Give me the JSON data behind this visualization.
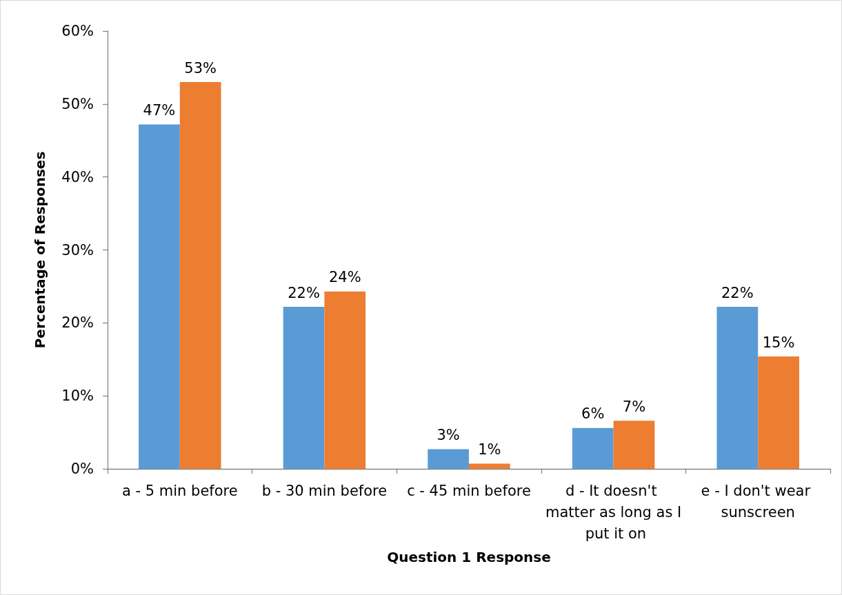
{
  "chart_data": {
    "type": "bar",
    "xlabel": "Question 1 Response",
    "ylabel": "Percentage of Responses",
    "categories": [
      "a - 5 min before",
      "b - 30 min before",
      "c - 45 min before",
      "d - It doesn't matter as long as I put it on",
      "e - I don't wear sunscreen"
    ],
    "series": [
      {
        "color": "#5b9bd5",
        "values": [
          47.2,
          22.2,
          2.7,
          5.6,
          22.2
        ],
        "value_labels": [
          "47%",
          "22%",
          "3%",
          "6%",
          "22%"
        ]
      },
      {
        "color": "#ed7d31",
        "values": [
          53.0,
          24.3,
          0.7,
          6.6,
          15.4
        ],
        "value_labels": [
          "53%",
          "24%",
          "1%",
          "7%",
          "15%"
        ]
      }
    ],
    "ylim": [
      0,
      60
    ],
    "yticks": [
      {
        "value": 0,
        "label": "0%"
      },
      {
        "value": 10,
        "label": "10%"
      },
      {
        "value": 20,
        "label": "20%"
      },
      {
        "value": 30,
        "label": "30%"
      },
      {
        "value": 40,
        "label": "40%"
      },
      {
        "value": 50,
        "label": "50%"
      },
      {
        "value": 60,
        "label": "60%"
      }
    ]
  }
}
